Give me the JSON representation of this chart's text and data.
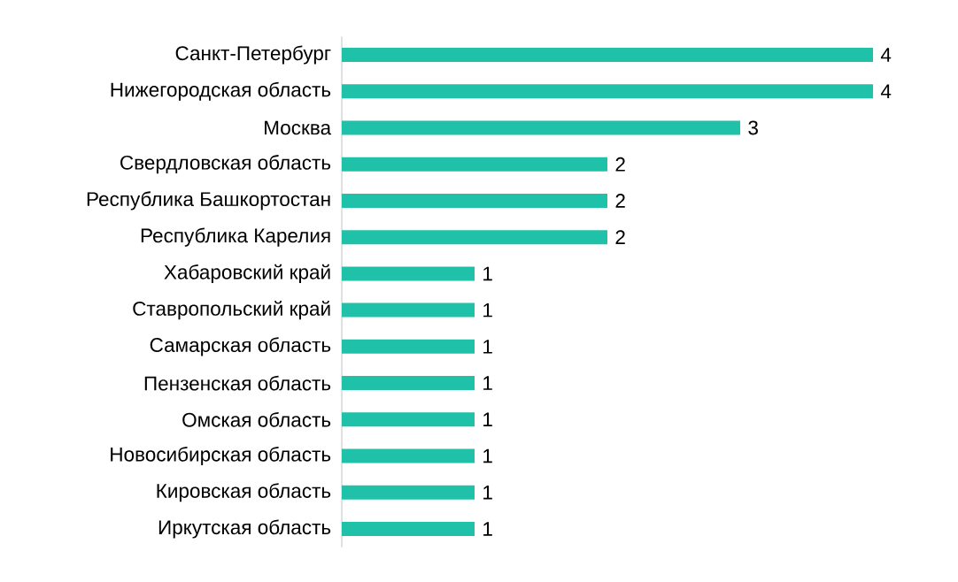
{
  "chart_data": {
    "type": "bar",
    "orientation": "horizontal",
    "data_labels": true,
    "color": "#1fc1a8",
    "categories": [
      "Санкт-Петербург",
      "Нижегородская область",
      "Москва",
      "Свердловская область",
      "Республика Башкортостан",
      "Республика Карелия",
      "Хабаровский край",
      "Ставропольский край",
      "Самарская область",
      "Пензенская область",
      "Омская область",
      "Новосибирская область",
      "Кировская область",
      "Иркутская область"
    ],
    "values": [
      4,
      4,
      3,
      2,
      2,
      2,
      1,
      1,
      1,
      1,
      1,
      1,
      1,
      1
    ]
  }
}
